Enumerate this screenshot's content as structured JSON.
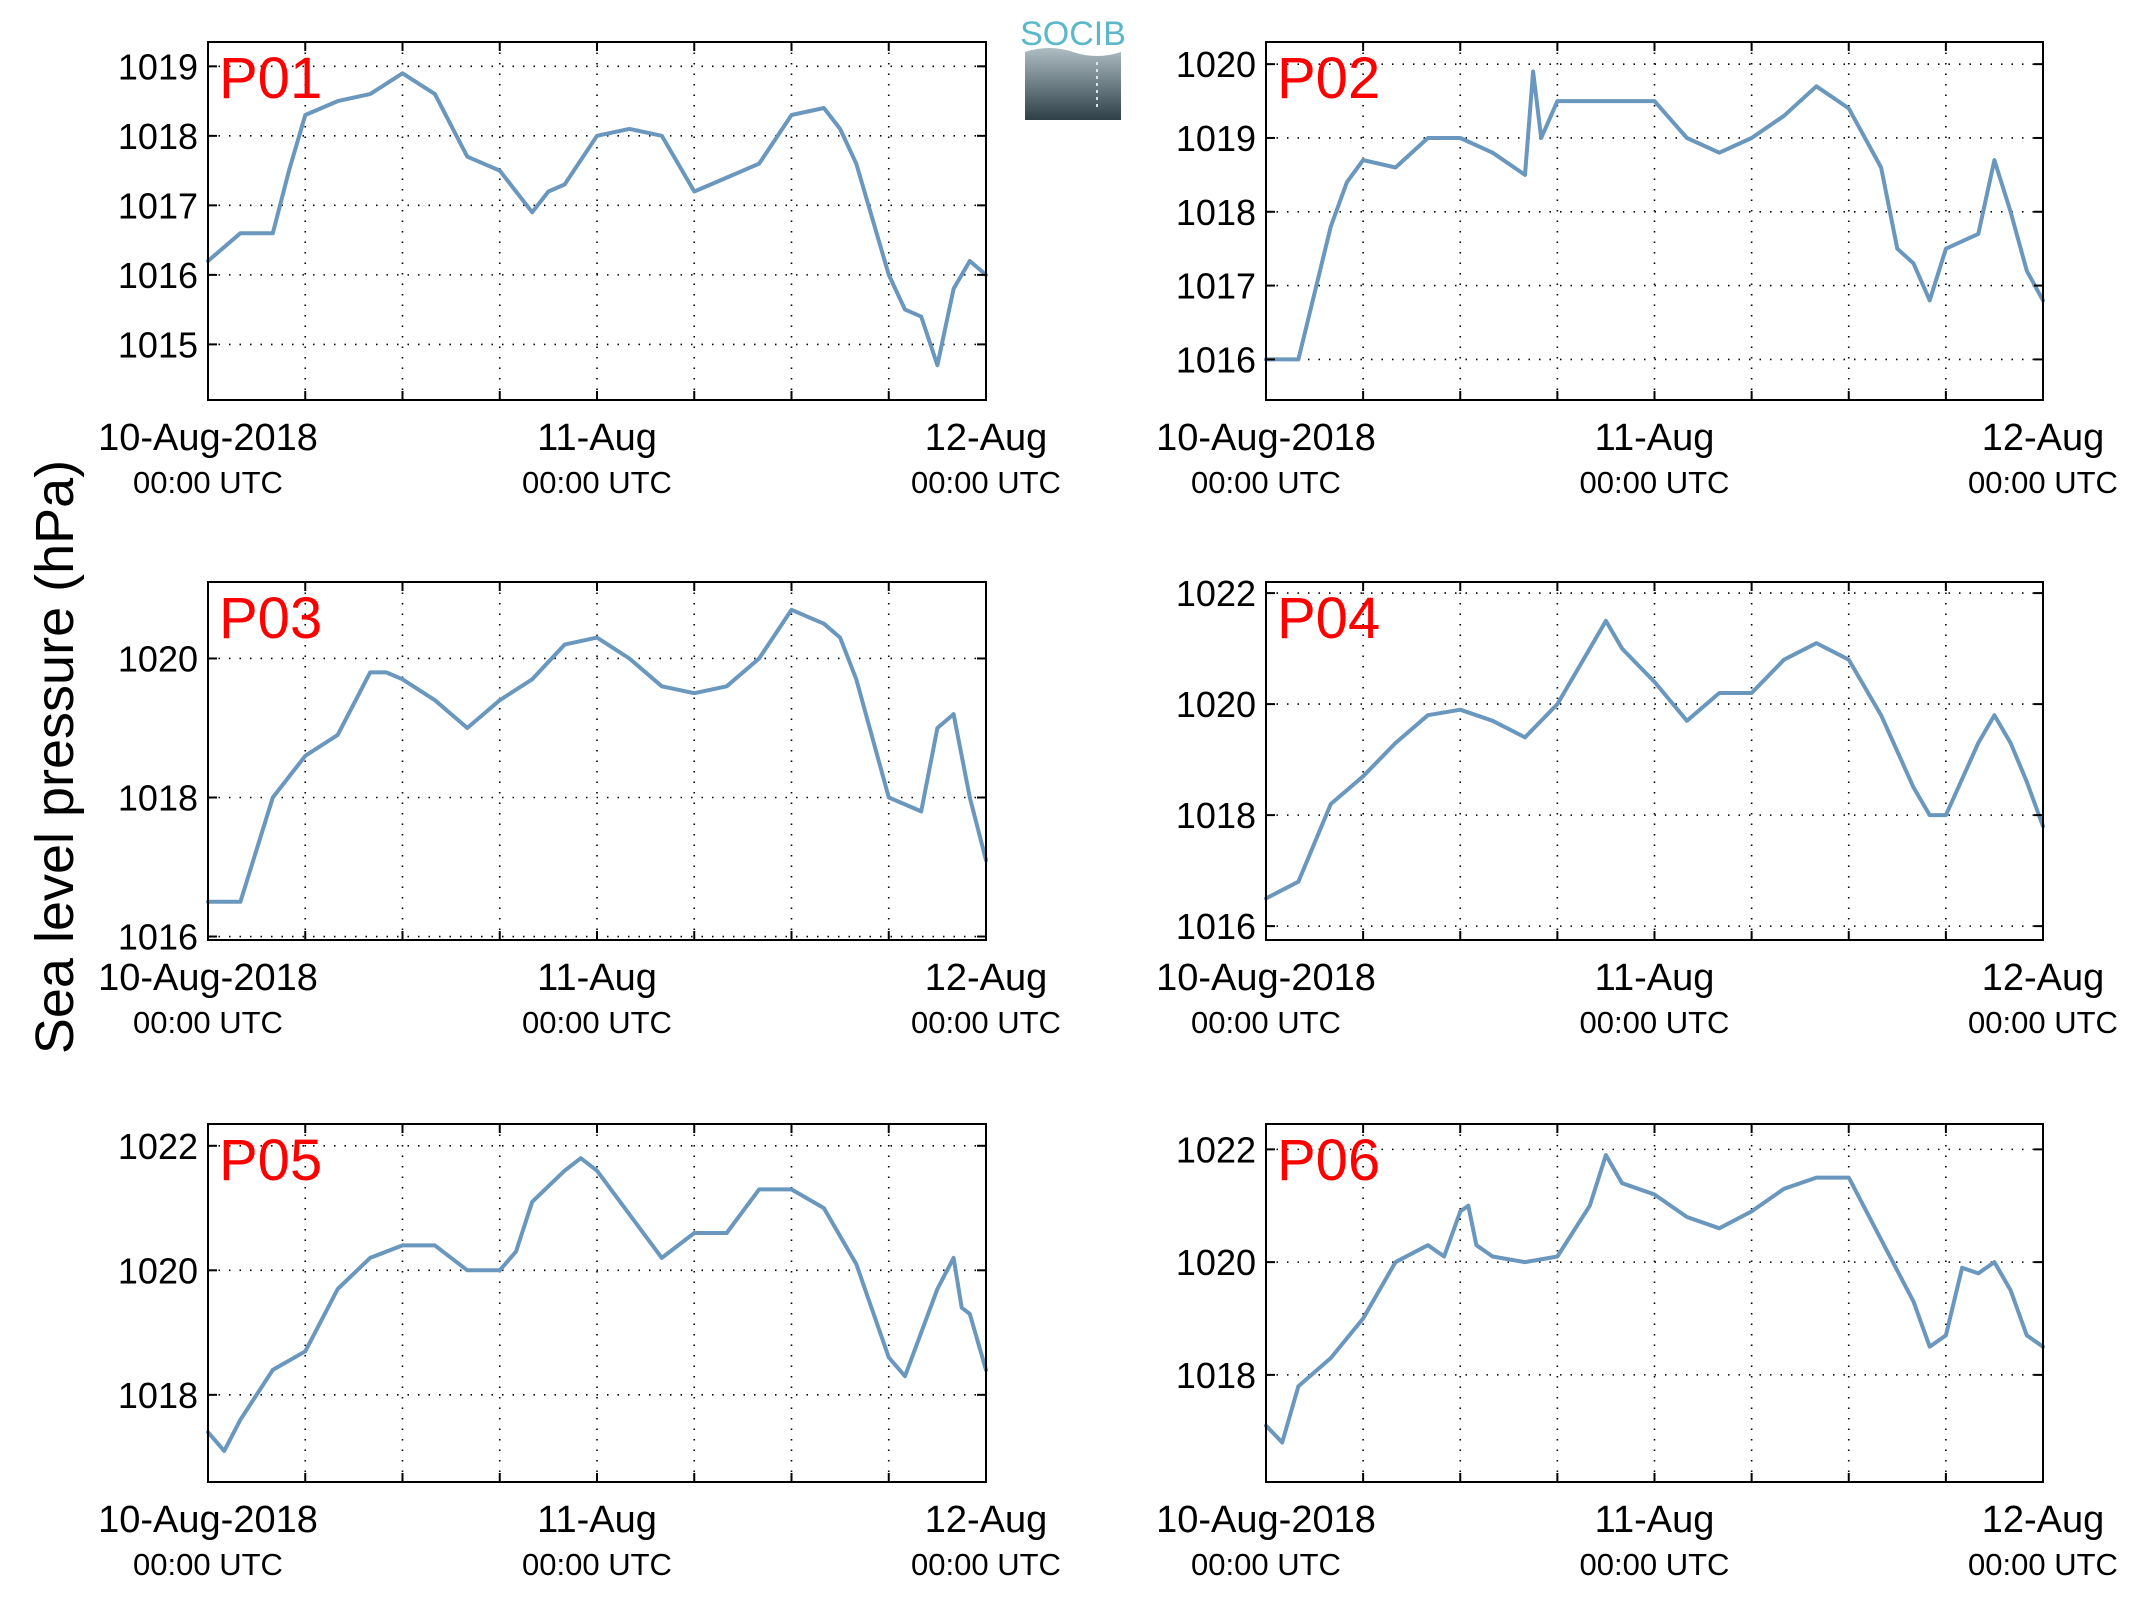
{
  "figure": {
    "ylabel": "Sea level pressure (hPa)",
    "logo_text": "SOCIB",
    "x_tick_labels": [
      {
        "line1": "10-Aug-2018",
        "line2": "00:00 UTC"
      },
      {
        "line1": "11-Aug",
        "line2": "00:00 UTC"
      },
      {
        "line1": "12-Aug",
        "line2": "00:00 UTC"
      }
    ],
    "colors": {
      "line": "#6a97bd",
      "title": "#ff0000",
      "logo_top": "#5bb8c9",
      "logo_bottom": "#2f3f48"
    }
  },
  "chart_data": [
    {
      "type": "line",
      "title": "P01",
      "xlabel": "",
      "ylabel": "Sea level pressure (hPa)",
      "xlim": [
        "2018-08-10 00:00",
        "2018-08-12 00:00"
      ],
      "ylim": [
        1014.2,
        1019.35
      ],
      "yticks": [
        1015,
        1016,
        1017,
        1018,
        1019
      ],
      "grid": true,
      "x_hours": [
        0,
        2,
        4,
        5,
        6,
        8,
        10,
        12,
        14,
        16,
        18,
        19,
        20,
        21,
        22,
        24,
        26,
        28,
        30,
        32,
        34,
        36,
        38,
        39,
        40,
        42,
        43,
        44,
        45,
        46,
        47,
        48
      ],
      "values": [
        1016.2,
        1016.6,
        1016.6,
        1017.5,
        1018.3,
        1018.5,
        1018.6,
        1018.9,
        1018.6,
        1017.7,
        1017.5,
        1017.2,
        1016.9,
        1017.2,
        1017.3,
        1018.0,
        1018.1,
        1018.0,
        1017.2,
        1017.4,
        1017.6,
        1018.3,
        1018.4,
        1018.1,
        1017.6,
        1016.0,
        1015.5,
        1015.4,
        1014.7,
        1015.8,
        1016.2,
        1016.0
      ]
    },
    {
      "type": "line",
      "title": "P02",
      "xlabel": "",
      "ylabel": "Sea level pressure (hPa)",
      "xlim": [
        "2018-08-10 00:00",
        "2018-08-12 00:00"
      ],
      "ylim": [
        1015.45,
        1020.3
      ],
      "yticks": [
        1016,
        1017,
        1018,
        1019,
        1020
      ],
      "grid": true,
      "x_hours": [
        0,
        2,
        4,
        5,
        6,
        8,
        10,
        12,
        14,
        16,
        16.5,
        17,
        18,
        20,
        22,
        24,
        26,
        28,
        30,
        32,
        34,
        36,
        38,
        39,
        40,
        41,
        42,
        44,
        45,
        46,
        47,
        48
      ],
      "values": [
        1016.0,
        1016.0,
        1017.8,
        1018.4,
        1018.7,
        1018.6,
        1019.0,
        1019.0,
        1018.8,
        1018.5,
        1019.9,
        1019.0,
        1019.5,
        1019.5,
        1019.5,
        1019.5,
        1019.0,
        1018.8,
        1019.0,
        1019.3,
        1019.7,
        1019.4,
        1018.6,
        1017.5,
        1017.3,
        1016.8,
        1017.5,
        1017.7,
        1018.7,
        1018.0,
        1017.2,
        1016.8
      ]
    },
    {
      "type": "line",
      "title": "P03",
      "xlabel": "",
      "ylabel": "Sea level pressure (hPa)",
      "xlim": [
        "2018-08-10 00:00",
        "2018-08-12 00:00"
      ],
      "ylim": [
        1015.95,
        1021.1
      ],
      "yticks": [
        1016,
        1018,
        1020
      ],
      "grid": true,
      "x_hours": [
        0,
        2,
        4,
        6,
        8,
        10,
        11,
        12,
        14,
        16,
        18,
        20,
        22,
        24,
        26,
        28,
        30,
        32,
        34,
        36,
        37,
        38,
        39,
        40,
        42,
        44,
        45,
        46,
        47,
        48
      ],
      "values": [
        1016.5,
        1016.5,
        1018.0,
        1018.6,
        1018.9,
        1019.8,
        1019.8,
        1019.7,
        1019.4,
        1019.0,
        1019.4,
        1019.7,
        1020.2,
        1020.3,
        1020.0,
        1019.6,
        1019.5,
        1019.6,
        1020.0,
        1020.7,
        1020.6,
        1020.5,
        1020.3,
        1019.7,
        1018.0,
        1017.8,
        1019.0,
        1019.2,
        1018.0,
        1017.1
      ]
    },
    {
      "type": "line",
      "title": "P04",
      "xlabel": "",
      "ylabel": "Sea level pressure (hPa)",
      "xlim": [
        "2018-08-10 00:00",
        "2018-08-12 00:00"
      ],
      "ylim": [
        1015.75,
        1022.2
      ],
      "yticks": [
        1016,
        1018,
        1020,
        1022
      ],
      "grid": true,
      "x_hours": [
        0,
        2,
        4,
        6,
        8,
        10,
        12,
        14,
        16,
        18,
        20,
        21,
        22,
        24,
        26,
        28,
        30,
        32,
        34,
        36,
        38,
        40,
        41,
        42,
        44,
        45,
        46,
        47,
        48
      ],
      "values": [
        1016.5,
        1016.8,
        1018.2,
        1018.7,
        1019.3,
        1019.8,
        1019.9,
        1019.7,
        1019.4,
        1020.0,
        1021.0,
        1021.5,
        1021.0,
        1020.4,
        1019.7,
        1020.2,
        1020.2,
        1020.8,
        1021.1,
        1020.8,
        1019.8,
        1018.5,
        1018.0,
        1018.0,
        1019.3,
        1019.8,
        1019.3,
        1018.6,
        1017.8
      ]
    },
    {
      "type": "line",
      "title": "P05",
      "xlabel": "",
      "ylabel": "Sea level pressure (hPa)",
      "xlim": [
        "2018-08-10 00:00",
        "2018-08-12 00:00"
      ],
      "ylim": [
        1016.6,
        1022.35
      ],
      "yticks": [
        1018,
        1020,
        1022
      ],
      "grid": true,
      "x_hours": [
        0,
        1,
        2,
        4,
        6,
        8,
        10,
        12,
        14,
        16,
        18,
        19,
        20,
        22,
        23,
        24,
        26,
        28,
        30,
        32,
        34,
        36,
        38,
        40,
        42,
        43,
        44,
        45,
        46,
        46.5,
        47,
        48
      ],
      "values": [
        1017.4,
        1017.1,
        1017.6,
        1018.4,
        1018.7,
        1019.7,
        1020.2,
        1020.4,
        1020.4,
        1020.0,
        1020.0,
        1020.3,
        1021.1,
        1021.6,
        1021.8,
        1021.6,
        1020.9,
        1020.2,
        1020.6,
        1020.6,
        1021.3,
        1021.3,
        1021.0,
        1020.1,
        1018.6,
        1018.3,
        1019.0,
        1019.7,
        1020.2,
        1019.4,
        1019.3,
        1018.4
      ]
    },
    {
      "type": "line",
      "title": "P06",
      "xlabel": "",
      "ylabel": "Sea level pressure (hPa)",
      "xlim": [
        "2018-08-10 00:00",
        "2018-08-12 00:00"
      ],
      "ylim": [
        1016.1,
        1022.45
      ],
      "yticks": [
        1018,
        1020,
        1022
      ],
      "grid": true,
      "x_hours": [
        0,
        1,
        2,
        4,
        6,
        8,
        10,
        11,
        12,
        12.5,
        13,
        14,
        16,
        18,
        20,
        21,
        22,
        24,
        26,
        28,
        30,
        32,
        34,
        36,
        38,
        40,
        41,
        42,
        43,
        44,
        45,
        46,
        47,
        48
      ],
      "values": [
        1017.1,
        1016.8,
        1017.8,
        1018.3,
        1019.0,
        1020.0,
        1020.3,
        1020.1,
        1020.9,
        1021.0,
        1020.3,
        1020.1,
        1020.0,
        1020.1,
        1021.0,
        1021.9,
        1021.4,
        1021.2,
        1020.8,
        1020.6,
        1020.9,
        1021.3,
        1021.5,
        1021.5,
        1020.4,
        1019.3,
        1018.5,
        1018.7,
        1019.9,
        1019.8,
        1020.0,
        1019.5,
        1018.7,
        1018.5
      ]
    }
  ]
}
